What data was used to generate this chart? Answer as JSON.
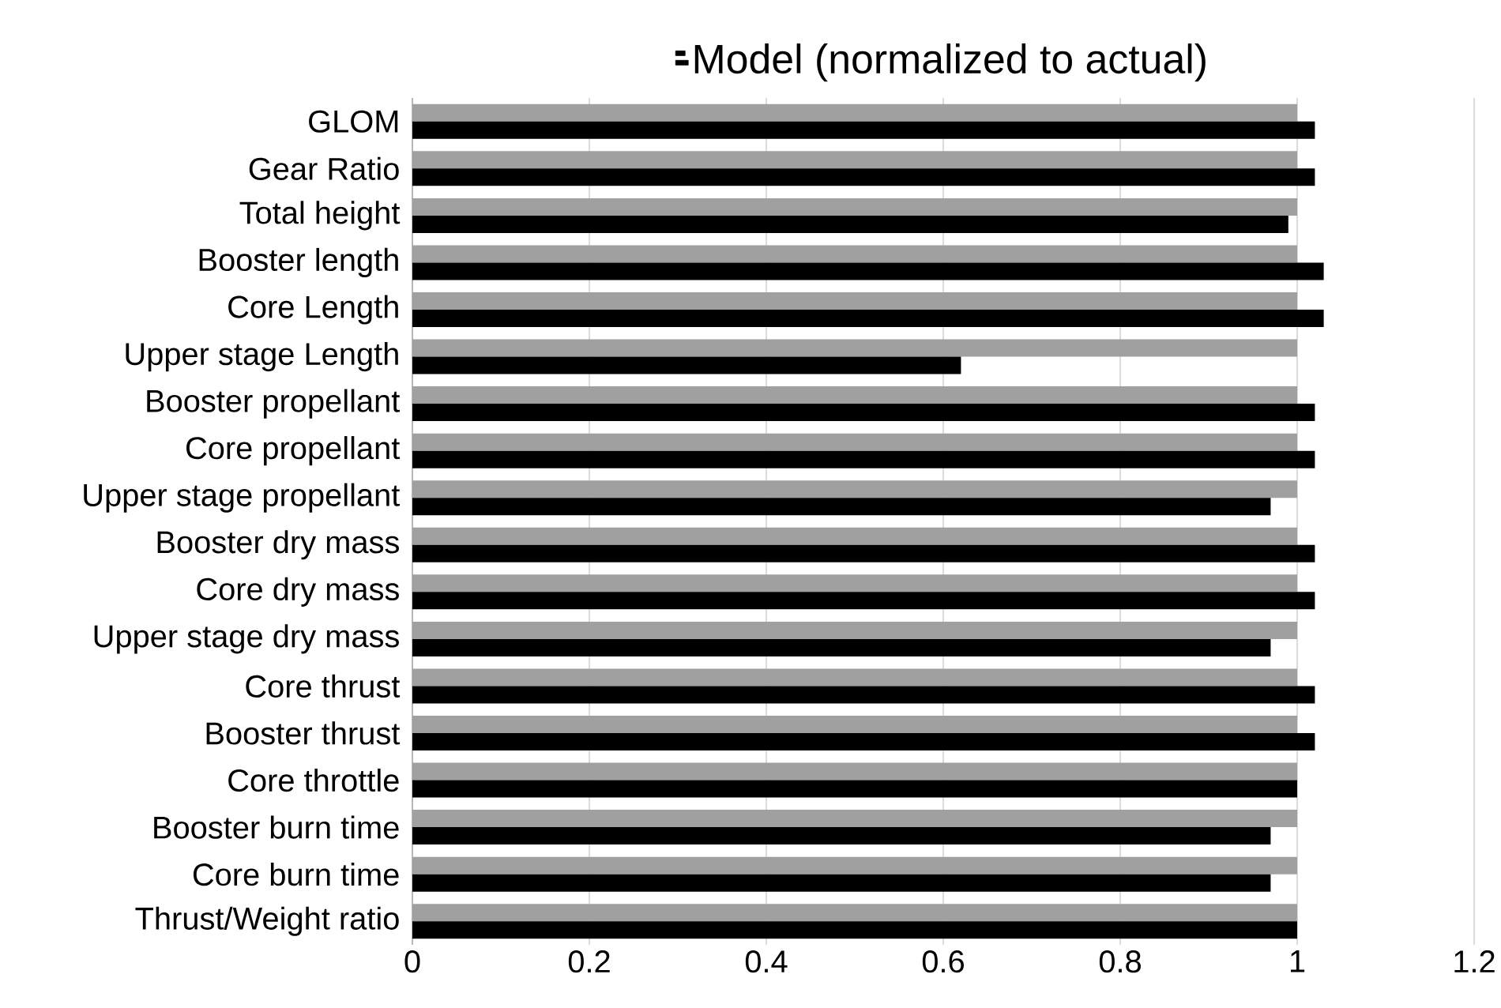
{
  "chart_data": {
    "type": "bar",
    "orientation": "horizontal",
    "legend": "top",
    "grid": "x",
    "categories": [
      "GLOM",
      "Gear Ratio",
      "Total height",
      "Booster length",
      "Core Length",
      "Upper stage Length",
      "Booster propellant",
      "Core propellant",
      "Upper stage propellant",
      "Booster dry mass",
      "Core dry mass",
      "Upper stage dry mass",
      "Core thrust",
      "Booster thrust",
      "Core throttle",
      "Booster burn time",
      "Core burn time",
      "Thrust/Weight ratio"
    ],
    "series": [
      {
        "color": "#a0a0a0",
        "values": [
          1,
          1,
          1,
          1,
          1,
          1,
          1,
          1,
          1,
          1,
          1,
          1,
          1,
          1,
          1,
          1,
          1,
          1
        ]
      },
      {
        "name": "Model (normalized to actual)",
        "color": "#000000",
        "values": [
          1.02,
          1.02,
          0.99,
          1.03,
          1.03,
          0.62,
          1.02,
          1.02,
          0.97,
          1.02,
          1.02,
          0.97,
          1.02,
          1.02,
          1.0,
          0.97,
          0.97,
          1.0
        ]
      }
    ],
    "xlim": [
      0,
      1.2
    ],
    "xticks": [
      0,
      0.2,
      0.4,
      0.6,
      0.8,
      1,
      1.2
    ]
  }
}
